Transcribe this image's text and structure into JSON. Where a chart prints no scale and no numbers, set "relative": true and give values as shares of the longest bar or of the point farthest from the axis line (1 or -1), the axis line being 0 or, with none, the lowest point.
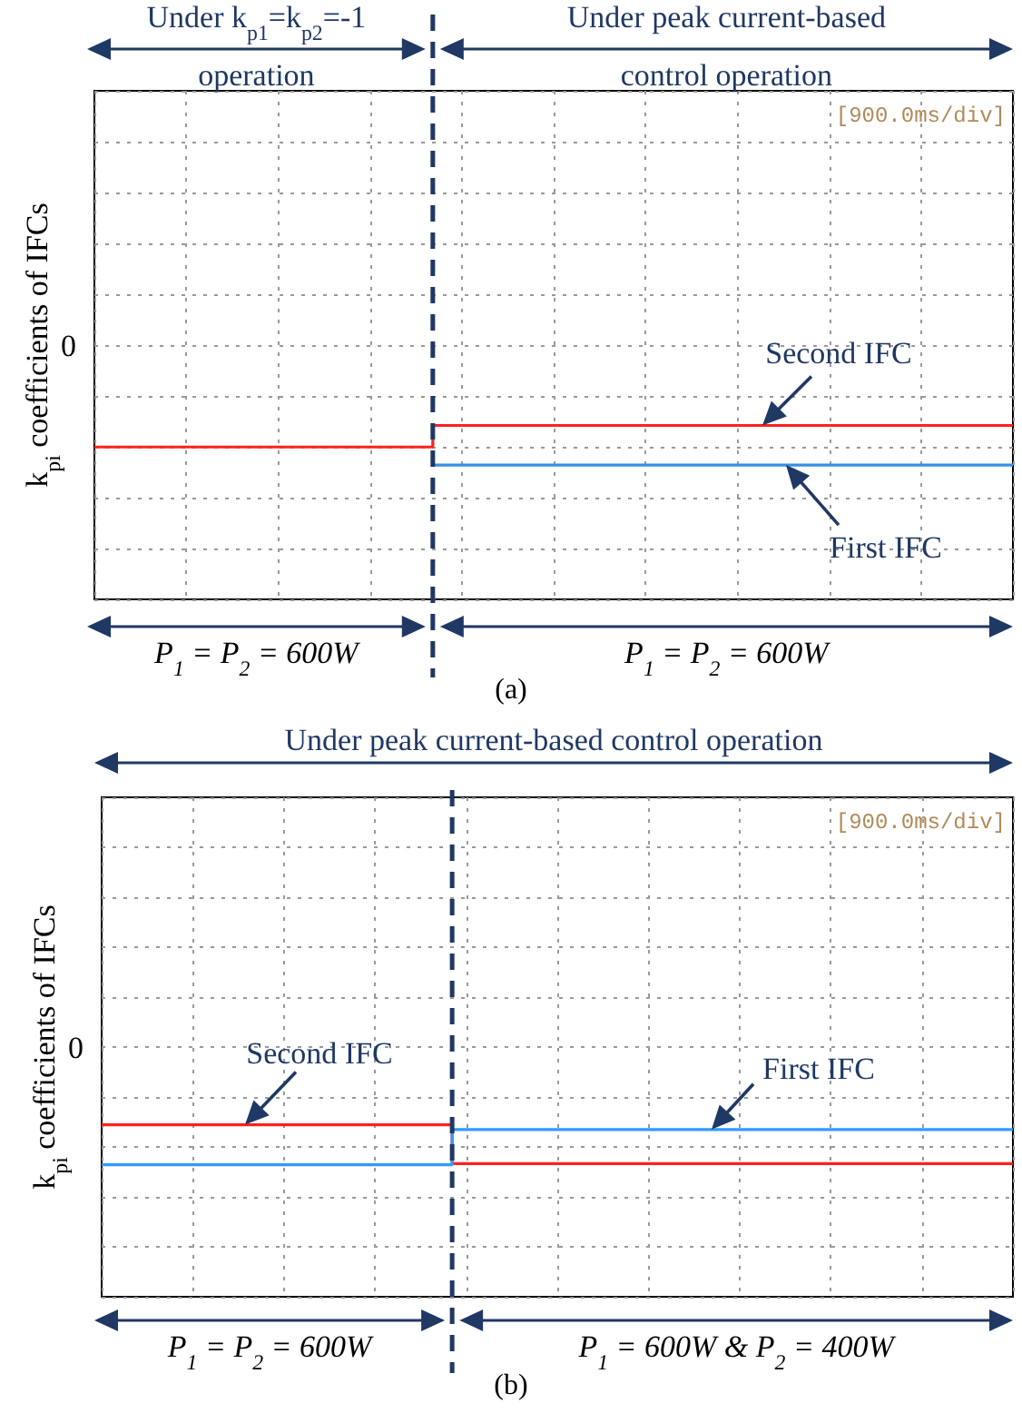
{
  "chart_data": [
    {
      "type": "step",
      "title": "(a)",
      "ylabel": "k$_{pi}$ coefficients of IFCs",
      "relative": true,
      "grid": true,
      "categories": [
        null,
        null,
        null,
        null,
        null,
        null,
        null,
        null,
        null,
        null,
        null,
        null,
        null,
        null,
        null,
        null,
        null,
        null,
        null,
        null
      ],
      "series": [
        {
          "color": "#ff2020",
          "values": [
            -0.85,
            -0.85,
            -0.85,
            -0.85,
            -0.85,
            -0.85,
            -0.85,
            -0.67,
            -0.67,
            -0.67,
            -0.67,
            -0.67,
            -0.67,
            -0.67,
            -0.67,
            -0.67,
            -0.67,
            -0.67,
            -0.67,
            -0.67
          ]
        },
        {
          "color": "#3a8ee6",
          "values": [
            null,
            null,
            null,
            null,
            null,
            null,
            null,
            -1,
            -1,
            -1,
            -1,
            -1,
            -1,
            -1,
            -1,
            -1,
            -1,
            -1,
            -1,
            -1
          ]
        }
      ],
      "annotations": [
        "Under k$_{p1}$=k$_{p2}$=-1 operation",
        "Under peak current-based control operation",
        "P$_{1}$ = P$_{2}$ = 600W",
        "P$_{1}$ = P$_{2}$ = 600W",
        "[900.0ms/div]",
        {
          "text": "Second IFC",
          "y": -0.67
        },
        {
          "text": "First IFC",
          "y": -1
        },
        "0"
      ]
    },
    {
      "type": "step",
      "title": "(b)",
      "ylabel": "k$_{pi}$ coefficients of IFCs",
      "relative": true,
      "grid": true,
      "categories": [
        null,
        null,
        null,
        null,
        null,
        null,
        null,
        null,
        null,
        null,
        null,
        null,
        null,
        null
      ],
      "series": [
        {
          "color": "#ff2020",
          "values": [
            -0.66,
            -0.66,
            -0.66,
            -0.66,
            -0.66,
            -0.99,
            -0.99,
            -0.99,
            -0.99,
            -0.99,
            -0.99,
            -0.99,
            -0.99,
            -0.99
          ]
        },
        {
          "color": "#3399ff",
          "values": [
            -1,
            -1,
            -1,
            -1,
            -1,
            -0.7,
            -0.7,
            -0.7,
            -0.7,
            -0.7,
            -0.7,
            -0.7,
            -0.7,
            -0.7
          ]
        }
      ],
      "annotations": [
        "Under peak current-based control operation",
        "P$_{1}$ = P$_{2}$ = 600W",
        "P$_{1}$ = 600W  & P$_{2}$ = 400W",
        "[900.0ms/div]",
        {
          "text": "Second IFC",
          "y": -0.66
        },
        {
          "text": "First IFC",
          "y": -0.7
        },
        "0"
      ]
    }
  ]
}
